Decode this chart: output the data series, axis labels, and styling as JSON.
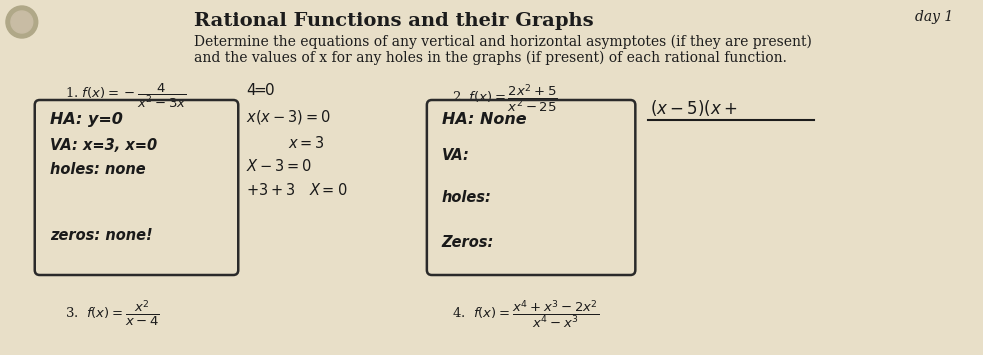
{
  "bg_color": "#d6c9b0",
  "title": "Rational Functions and their Graphs",
  "day": "day 1",
  "instructions_line1": "Determine the equations of any vertical and horizontal asymptotes (if they are present)",
  "instructions_line2": "and the values of x for any holes in the graphs (if present) of each rational function.",
  "title_fontsize": 14,
  "day_fontsize": 10,
  "instructions_fontsize": 10,
  "text_color": "#1c1c1c",
  "handwriting_color": "#1a1a1a",
  "box_edge_color": "#2a2a2a",
  "bg_paper_color": "#e8dfc8"
}
